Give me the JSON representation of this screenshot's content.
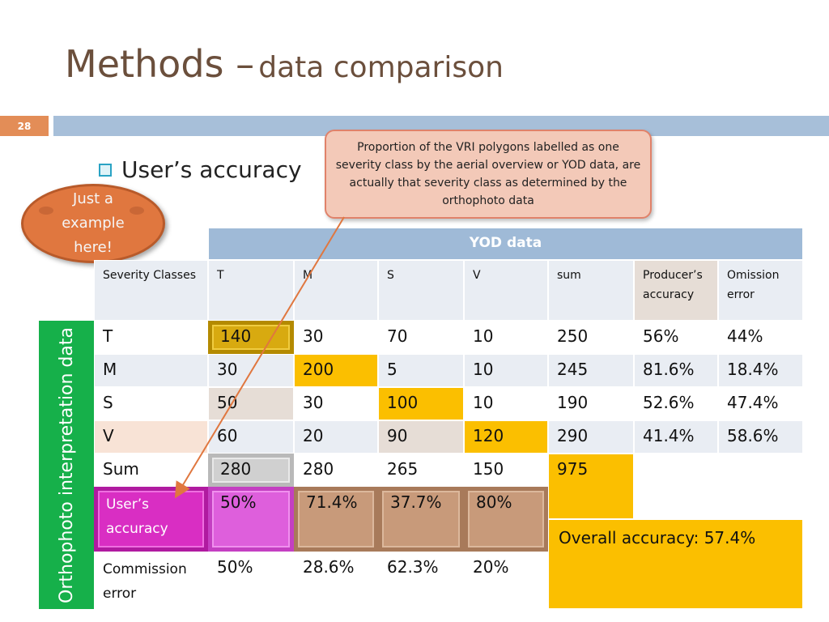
{
  "slide": {
    "title_main": "Methods –",
    "title_sub": "data comparison",
    "slide_number": "28",
    "bullet": "User’s accuracy",
    "callout": "Proportion of the VRI polygons labelled as one severity class by the aerial overview or YOD data, are actually that severity class as determined by the orthophoto data",
    "note": "Just a\nexample\nhere!",
    "side_label": "Orthophoto interpretation data",
    "colors": {
      "title": "#6b4f3c",
      "accent_bar": "#a7bfd9",
      "slide_num_bg": "#e38d57",
      "side_label_bg": "#16b04a",
      "highlight": "#fbbf00"
    }
  },
  "table": {
    "group_header": "YOD data",
    "headers": [
      "Severity Classes",
      "T",
      "M",
      "S",
      "V",
      "sum",
      "Producer’s accuracy",
      "Omission error"
    ],
    "rows": [
      {
        "label": "T",
        "values": [
          "140",
          "30",
          "70",
          "10",
          "250",
          "56%",
          "44%"
        ]
      },
      {
        "label": "M",
        "values": [
          "30",
          "200",
          "5",
          "10",
          "245",
          "81.6%",
          "18.4%"
        ]
      },
      {
        "label": "S",
        "values": [
          "50",
          "30",
          "100",
          "10",
          "190",
          "52.6%",
          "47.4%"
        ]
      },
      {
        "label": "V",
        "values": [
          "60",
          "20",
          "90",
          "120",
          "290",
          "41.4%",
          "58.6%"
        ]
      },
      {
        "label": "Sum",
        "values": [
          "280",
          "280",
          "265",
          "150",
          "975"
        ]
      },
      {
        "label": "User’s accuracy",
        "values": [
          "50%",
          "71.4%",
          "37.7%",
          "80%"
        ]
      },
      {
        "label": "Commission error",
        "values": [
          "50%",
          "28.6%",
          "62.3%",
          "20%"
        ]
      }
    ],
    "overall": "Overall accuracy: 57.4%"
  }
}
